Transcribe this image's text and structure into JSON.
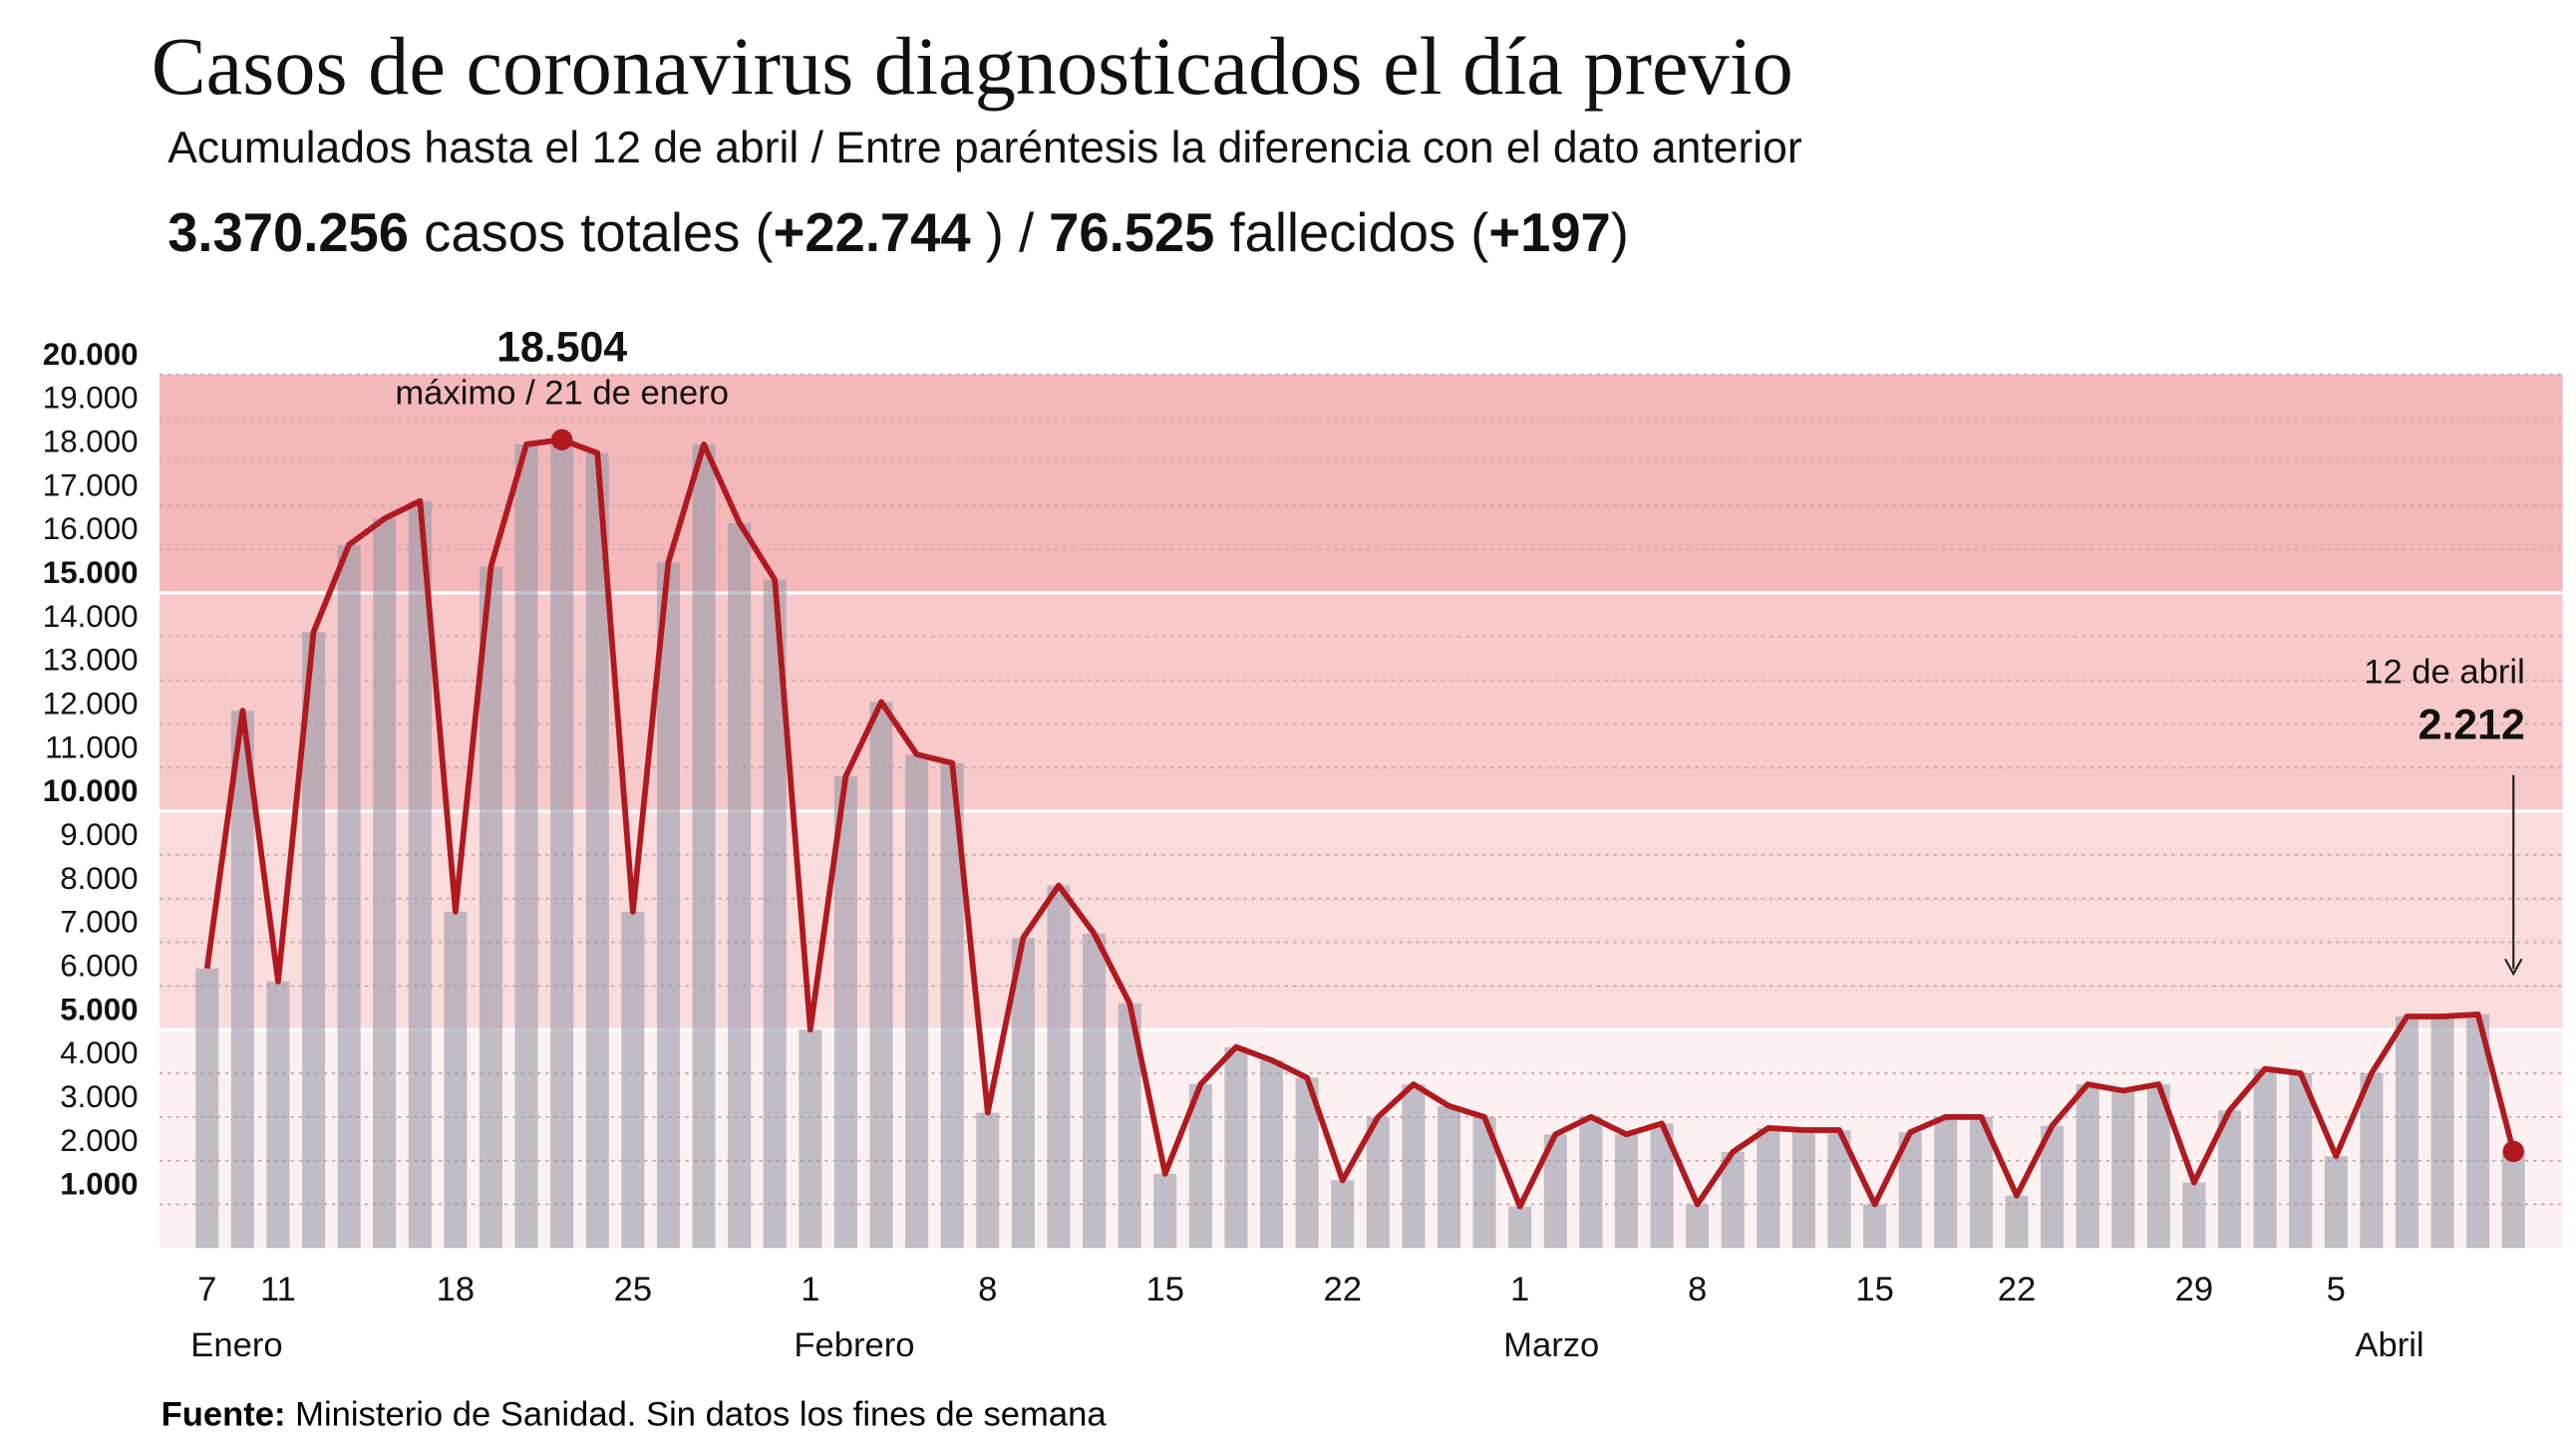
{
  "chart_data": {
    "type": "bar-line",
    "title": "Casos de coronavirus diagnosticados el día previo",
    "subtitle": "Acumulados hasta el 12 de abril / Entre paréntesis la diferencia con el dato anterior",
    "summary": [
      {
        "text": "3.370.256",
        "bold": true
      },
      {
        "text": " casos totales (",
        "bold": false
      },
      {
        "text": "+22.744",
        "bold": true
      },
      {
        "text": " ) / ",
        "bold": false
      },
      {
        "text": "76.525",
        "bold": true
      },
      {
        "text": " fallecidos (",
        "bold": false
      },
      {
        "text": "+197",
        "bold": true
      },
      {
        "text": ")",
        "bold": false
      }
    ],
    "categories": [
      "7",
      null,
      "11",
      null,
      null,
      null,
      null,
      "18",
      null,
      null,
      null,
      null,
      "25",
      null,
      null,
      null,
      null,
      "1",
      null,
      null,
      null,
      null,
      "8",
      null,
      null,
      null,
      null,
      "15",
      null,
      null,
      null,
      null,
      "22",
      null,
      null,
      null,
      null,
      "1",
      null,
      null,
      null,
      null,
      "8",
      null,
      null,
      null,
      null,
      "15",
      null,
      null,
      null,
      "22",
      null,
      null,
      null,
      null,
      "29",
      null,
      null,
      null,
      "5",
      null,
      null,
      null,
      null,
      null
    ],
    "x_groups": [
      "Enero",
      null,
      null,
      null,
      null,
      null,
      null,
      null,
      null,
      null,
      null,
      null,
      null,
      null,
      null,
      null,
      null,
      "Febrero",
      null,
      null,
      null,
      null,
      null,
      null,
      null,
      null,
      null,
      null,
      null,
      null,
      null,
      null,
      null,
      null,
      null,
      null,
      null,
      "Marzo",
      null,
      null,
      null,
      null,
      null,
      null,
      null,
      null,
      null,
      null,
      null,
      null,
      null,
      null,
      null,
      null,
      null,
      null,
      null,
      null,
      null,
      null,
      null,
      "Abril",
      null,
      null,
      null,
      null,
      null
    ],
    "values": [
      6400,
      12300,
      6100,
      14100,
      16100,
      16700,
      17100,
      7700,
      15600,
      18400,
      18504,
      18200,
      7700,
      15700,
      18400,
      16600,
      15300,
      5000,
      10800,
      12500,
      11300,
      11100,
      3100,
      7100,
      8300,
      7200,
      5600,
      1700,
      3750,
      4600,
      4300,
      3900,
      1550,
      3000,
      3750,
      3250,
      3000,
      950,
      2600,
      3000,
      2600,
      2850,
      1000,
      2200,
      2750,
      2700,
      2700,
      1000,
      2650,
      3000,
      3000,
      1200,
      2800,
      3750,
      3600,
      3750,
      1500,
      3150,
      4100,
      4000,
      2100,
      4000,
      5300,
      5300,
      5350,
      2212
    ],
    "value_labels": [
      null,
      null,
      null,
      null,
      null,
      null,
      null,
      null,
      null,
      null,
      "18.504",
      null,
      null,
      null,
      null,
      null,
      null,
      null,
      null,
      null,
      null,
      null,
      null,
      null,
      null,
      null,
      null,
      null,
      null,
      null,
      null,
      null,
      null,
      null,
      null,
      null,
      null,
      null,
      null,
      null,
      null,
      null,
      null,
      null,
      null,
      null,
      null,
      null,
      null,
      null,
      null,
      null,
      null,
      null,
      null,
      null,
      null,
      null,
      null,
      null,
      null,
      null,
      null,
      null,
      null,
      "2.212"
    ],
    "annotations": [
      "máximo / 21 de enero",
      "12 de abril"
    ],
    "bar_color": "#8e93a6",
    "line_color": "#b0191e",
    "bands": [
      {
        "from": 0,
        "to": 5000,
        "color": "#fdf0f0"
      },
      {
        "from": 5000,
        "to": 10000,
        "color": "#fadcdd"
      },
      {
        "from": 10000,
        "to": 15000,
        "color": "#f7c9cb"
      },
      {
        "from": 15000,
        "to": 20000,
        "color": "#f4b8bb"
      }
    ],
    "ylim": [
      0,
      20000
    ],
    "yticks": [
      {
        "value": 1000,
        "label": "1.000",
        "bold": true
      },
      {
        "value": 2000,
        "label": "2.000"
      },
      {
        "value": 3000,
        "label": "3.000"
      },
      {
        "value": 4000,
        "label": "4.000"
      },
      {
        "value": 5000,
        "label": "5.000",
        "bold": true
      },
      {
        "value": 6000,
        "label": "6.000"
      },
      {
        "value": 7000,
        "label": "7.000"
      },
      {
        "value": 8000,
        "label": "8.000"
      },
      {
        "value": 9000,
        "label": "9.000"
      },
      {
        "value": 10000,
        "label": "10.000",
        "bold": true
      },
      {
        "value": 11000,
        "label": "11.000"
      },
      {
        "value": 12000,
        "label": "12.000"
      },
      {
        "value": 13000,
        "label": "13.000"
      },
      {
        "value": 14000,
        "label": "14.000"
      },
      {
        "value": 15000,
        "label": "15.000",
        "bold": true
      },
      {
        "value": 16000,
        "label": "16.000"
      },
      {
        "value": 17000,
        "label": "17.000"
      },
      {
        "value": 18000,
        "label": "18.000"
      },
      {
        "value": 19000,
        "label": "19.000"
      },
      {
        "value": 20000,
        "label": "20.000",
        "bold": true
      }
    ],
    "source": [
      {
        "text": "Fuente:",
        "bold": true
      },
      {
        "text": " Ministerio de Sanidad. Sin datos los fines de semana",
        "bold": false
      }
    ]
  }
}
